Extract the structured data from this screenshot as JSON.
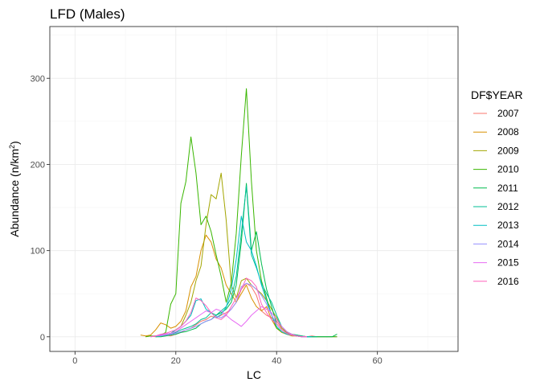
{
  "chart_data": {
    "type": "line",
    "title": "LFD (Males)",
    "xlabel": "LC",
    "ylabel": "Abundance (n/km",
    "ylabel_sup": "2",
    "ylabel_end": ")",
    "xlim": [
      -5,
      76
    ],
    "ylim": [
      -17,
      360
    ],
    "xticks": [
      0,
      20,
      40,
      60
    ],
    "yticks": [
      0,
      100,
      200,
      300
    ],
    "xtick_labels": [
      "0",
      "20",
      "40",
      "60"
    ],
    "ytick_labels": [
      "0",
      "100",
      "200",
      "300"
    ],
    "grid": true,
    "legend": {
      "title": "DF$YEAR",
      "position": "right"
    },
    "series": [
      {
        "name": "2007",
        "color": "#F8766D",
        "x": [
          14,
          15,
          16,
          17,
          18,
          19,
          20,
          21,
          22,
          23,
          24,
          25,
          26,
          27,
          28,
          29,
          30,
          31,
          32,
          33,
          34,
          35,
          36,
          37,
          38,
          39,
          40,
          41,
          42,
          43,
          44,
          45,
          46,
          47,
          48,
          49,
          50,
          51,
          52
        ],
        "y": [
          0,
          1,
          0,
          1,
          2,
          1,
          3,
          5,
          8,
          10,
          14,
          18,
          20,
          24,
          22,
          25,
          28,
          32,
          40,
          55,
          62,
          58,
          48,
          30,
          25,
          22,
          18,
          10,
          6,
          3,
          2,
          1,
          0,
          1,
          0,
          0,
          0,
          0,
          0
        ]
      },
      {
        "name": "2008",
        "color": "#D89000",
        "x": [
          13,
          14,
          15,
          16,
          17,
          18,
          19,
          20,
          21,
          22,
          23,
          24,
          25,
          26,
          27,
          28,
          29,
          30,
          31,
          32,
          33,
          34,
          35,
          36,
          37,
          38,
          39,
          40,
          41,
          42,
          43,
          44,
          45,
          46
        ],
        "y": [
          2,
          1,
          2,
          8,
          16,
          14,
          10,
          12,
          18,
          30,
          58,
          70,
          100,
          118,
          110,
          90,
          80,
          60,
          50,
          40,
          50,
          60,
          45,
          35,
          30,
          35,
          20,
          10,
          5,
          3,
          1,
          1,
          0,
          0
        ]
      },
      {
        "name": "2009",
        "color": "#A3A500",
        "x": [
          17,
          18,
          19,
          20,
          21,
          22,
          23,
          24,
          25,
          26,
          27,
          28,
          29,
          30,
          31,
          32,
          33,
          34,
          35,
          36,
          37,
          38,
          39,
          40,
          41,
          42,
          43,
          44,
          45,
          46,
          47,
          48
        ],
        "y": [
          0,
          2,
          4,
          8,
          12,
          25,
          40,
          65,
          82,
          130,
          165,
          160,
          190,
          135,
          60,
          45,
          65,
          68,
          60,
          55,
          50,
          42,
          32,
          22,
          10,
          5,
          3,
          2,
          1,
          0,
          0,
          0
        ]
      },
      {
        "name": "2010",
        "color": "#39B600",
        "x": [
          14,
          15,
          16,
          17,
          18,
          19,
          20,
          21,
          22,
          23,
          24,
          25,
          26,
          27,
          28,
          29,
          30,
          31,
          32,
          33,
          34,
          35,
          36,
          37,
          38,
          39,
          40,
          41,
          42,
          43,
          44,
          45,
          46,
          47,
          48,
          49,
          50,
          51,
          52
        ],
        "y": [
          0,
          1,
          1,
          2,
          5,
          38,
          50,
          155,
          180,
          232,
          190,
          130,
          140,
          122,
          95,
          70,
          40,
          62,
          120,
          210,
          288,
          180,
          100,
          65,
          45,
          25,
          10,
          6,
          3,
          2,
          1,
          0,
          0,
          0,
          0,
          0,
          0,
          0,
          0
        ]
      },
      {
        "name": "2011",
        "color": "#00BB4E",
        "x": [
          16,
          17,
          18,
          19,
          20,
          21,
          22,
          23,
          24,
          25,
          26,
          27,
          28,
          29,
          30,
          31,
          32,
          33,
          34,
          35,
          36,
          37,
          38,
          39,
          40,
          41,
          42,
          43,
          44,
          45,
          46,
          47,
          48,
          49,
          50,
          51,
          52
        ],
        "y": [
          0,
          0,
          1,
          2,
          3,
          5,
          6,
          8,
          10,
          15,
          18,
          20,
          25,
          28,
          32,
          40,
          60,
          110,
          178,
          100,
          122,
          85,
          55,
          35,
          15,
          8,
          4,
          2,
          1,
          0,
          0,
          0,
          0,
          0,
          0,
          0,
          3
        ]
      },
      {
        "name": "2012",
        "color": "#00BF96",
        "x": [
          16,
          17,
          18,
          19,
          20,
          21,
          22,
          23,
          24,
          25,
          26,
          27,
          28,
          29,
          30,
          31,
          32,
          33,
          34,
          35,
          36,
          37,
          38,
          39,
          40,
          41,
          42,
          43,
          44,
          45,
          46,
          47,
          48
        ],
        "y": [
          0,
          1,
          2,
          3,
          5,
          8,
          10,
          12,
          15,
          20,
          22,
          28,
          25,
          30,
          35,
          45,
          70,
          120,
          175,
          95,
          80,
          62,
          50,
          40,
          25,
          12,
          6,
          3,
          2,
          1,
          0,
          0,
          0
        ]
      },
      {
        "name": "2013",
        "color": "#00BFC4",
        "x": [
          15,
          16,
          17,
          18,
          19,
          20,
          21,
          22,
          23,
          24,
          25,
          26,
          27,
          28,
          29,
          30,
          31,
          32,
          33,
          34,
          35,
          36,
          37,
          38,
          39,
          40,
          41,
          42,
          43,
          44,
          45,
          46,
          47
        ],
        "y": [
          0,
          1,
          2,
          3,
          4,
          8,
          12,
          18,
          25,
          42,
          44,
          32,
          28,
          22,
          26,
          34,
          55,
          90,
          140,
          110,
          100,
          82,
          60,
          42,
          25,
          12,
          6,
          3,
          2,
          1,
          0,
          0,
          0
        ]
      },
      {
        "name": "2014",
        "color": "#9590FF",
        "x": [
          15,
          16,
          17,
          18,
          19,
          20,
          21,
          22,
          23,
          24,
          25,
          26,
          27,
          28,
          29,
          30,
          31,
          32,
          33,
          34,
          35,
          36,
          37,
          38,
          39,
          40,
          41,
          42,
          43,
          44,
          45,
          46
        ],
        "y": [
          0,
          1,
          1,
          2,
          3,
          4,
          6,
          8,
          10,
          12,
          15,
          18,
          20,
          24,
          22,
          26,
          32,
          40,
          58,
          62,
          60,
          55,
          48,
          38,
          25,
          15,
          8,
          4,
          2,
          1,
          0,
          0
        ]
      },
      {
        "name": "2015",
        "color": "#E76BF3",
        "x": [
          15,
          16,
          17,
          18,
          19,
          20,
          21,
          22,
          23,
          24,
          25,
          26,
          27,
          28,
          29,
          30,
          31,
          32,
          33,
          34,
          35,
          36,
          37,
          38,
          39,
          40,
          41,
          42,
          43,
          44,
          45,
          46
        ],
        "y": [
          0,
          1,
          2,
          3,
          4,
          6,
          10,
          14,
          18,
          22,
          26,
          30,
          28,
          32,
          30,
          25,
          20,
          16,
          12,
          18,
          25,
          30,
          35,
          32,
          28,
          20,
          12,
          6,
          3,
          1,
          0,
          0
        ]
      },
      {
        "name": "2016",
        "color": "#FF62BC",
        "x": [
          15,
          16,
          17,
          18,
          19,
          20,
          21,
          22,
          23,
          24,
          25,
          26,
          27,
          28,
          29,
          30,
          31,
          32,
          33,
          34,
          35,
          36,
          37,
          38,
          39,
          40,
          41,
          42,
          43,
          44,
          45,
          46
        ],
        "y": [
          0,
          1,
          3,
          4,
          6,
          8,
          12,
          18,
          28,
          45,
          42,
          36,
          28,
          22,
          20,
          25,
          35,
          45,
          55,
          68,
          65,
          58,
          38,
          28,
          20,
          15,
          8,
          4,
          2,
          1,
          0,
          0
        ]
      }
    ]
  }
}
